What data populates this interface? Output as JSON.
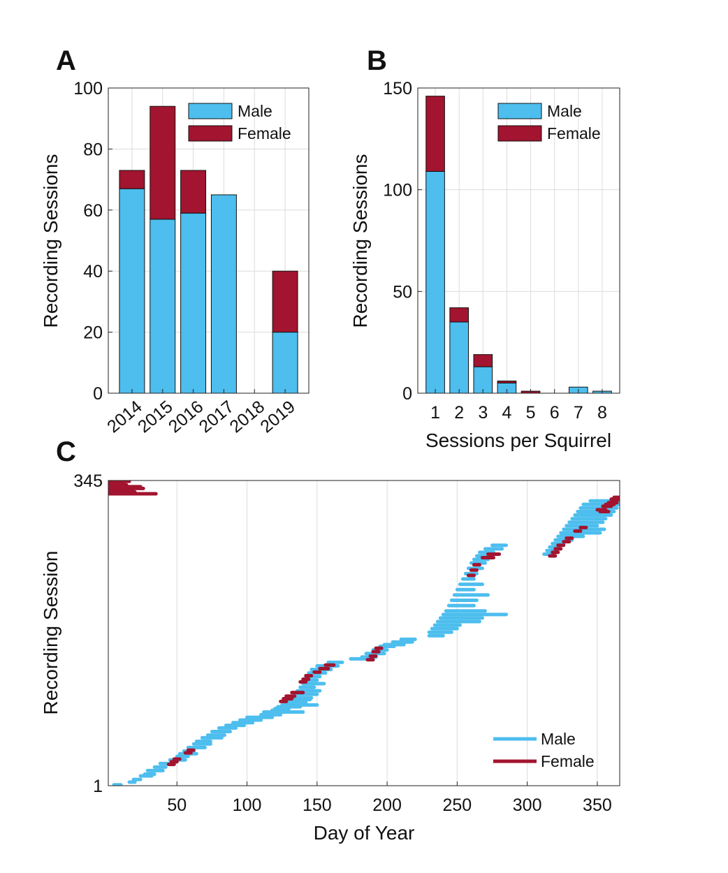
{
  "colors": {
    "male": "#4DBEEE",
    "female": "#A2142F",
    "grid": "#dcdcdc",
    "axis": "#222222"
  },
  "chart_data": [
    {
      "panel": "A",
      "type": "bar",
      "stacked": true,
      "categories": [
        "2014",
        "2015",
        "2016",
        "2017",
        "2018",
        "2019"
      ],
      "series": [
        {
          "name": "Male",
          "values": [
            67,
            57,
            59,
            65,
            0,
            20
          ]
        },
        {
          "name": "Female",
          "values": [
            6,
            37,
            14,
            0,
            0,
            20
          ]
        }
      ],
      "ylabel": "Recording Sessions",
      "xlabel": "",
      "ylim": [
        0,
        100
      ],
      "yticks": [
        "0",
        "20",
        "40",
        "60",
        "80",
        "100"
      ],
      "grid": true,
      "legend": "top-right"
    },
    {
      "panel": "B",
      "type": "bar",
      "stacked": true,
      "categories": [
        "1",
        "2",
        "3",
        "4",
        "5",
        "6",
        "7",
        "8"
      ],
      "series": [
        {
          "name": "Male",
          "values": [
            109,
            35,
            13,
            5,
            0,
            0,
            3,
            1
          ]
        },
        {
          "name": "Female",
          "values": [
            37,
            7,
            6,
            1,
            1,
            0,
            0,
            0
          ]
        }
      ],
      "ylabel": "Recording Sessions",
      "xlabel": "Sessions per Squirrel",
      "ylim": [
        0,
        150
      ],
      "yticks": [
        "0",
        "50",
        "100",
        "150"
      ],
      "grid": true,
      "legend": "top-right"
    },
    {
      "panel": "C",
      "type": "line",
      "description_of_marks": "one horizontal segment per recording session spanning start day to end day of year",
      "xlabel": "Day of Year",
      "ylabel": "Recording Session",
      "xlim": [
        1,
        366
      ],
      "ylim": [
        1,
        345
      ],
      "xticks": [
        "50",
        "100",
        "150",
        "200",
        "250",
        "300",
        "350"
      ],
      "yticks": [
        "1",
        "345"
      ],
      "grid": "x",
      "legend": "bottom-right",
      "series": [
        {
          "name": "Male",
          "segments": [
            [
              5,
              10,
              2
            ],
            [
              16,
              20,
              5
            ],
            [
              19,
              24,
              8
            ],
            [
              24,
              32,
              12
            ],
            [
              27,
              34,
              14
            ],
            [
              29,
              40,
              18
            ],
            [
              34,
              42,
              22
            ],
            [
              38,
              46,
              26
            ],
            [
              45,
              56,
              30
            ],
            [
              50,
              58,
              34
            ],
            [
              52,
              64,
              37
            ],
            [
              55,
              62,
              40
            ],
            [
              58,
              70,
              44
            ],
            [
              62,
              74,
              48
            ],
            [
              64,
              74,
              51
            ],
            [
              68,
              82,
              55
            ],
            [
              72,
              84,
              58
            ],
            [
              75,
              88,
              62
            ],
            [
              80,
              92,
              66
            ],
            [
              85,
              98,
              69
            ],
            [
              90,
              104,
              72
            ],
            [
              95,
              110,
              75
            ],
            [
              100,
              118,
              78
            ],
            [
              110,
              124,
              81
            ],
            [
              112,
              140,
              84
            ],
            [
              118,
              128,
              86
            ],
            [
              120,
              130,
              88
            ],
            [
              122,
              138,
              90
            ],
            [
              125,
              150,
              92
            ],
            [
              128,
              142,
              95
            ],
            [
              130,
              145,
              98
            ],
            [
              132,
              146,
              100
            ],
            [
              135,
              150,
              104
            ],
            [
              136,
              152,
              108
            ],
            [
              138,
              148,
              112
            ],
            [
              140,
              155,
              116
            ],
            [
              141,
              150,
              120
            ],
            [
              142,
              152,
              124
            ],
            [
              144,
              156,
              128
            ],
            [
              146,
              160,
              132
            ],
            [
              150,
              165,
              136
            ],
            [
              158,
              168,
              140
            ],
            [
              174,
              188,
              144
            ],
            [
              182,
              192,
              146
            ],
            [
              185,
              198,
              150
            ],
            [
              190,
              200,
              154
            ],
            [
              195,
              205,
              158
            ],
            [
              198,
              212,
              160
            ],
            [
              204,
              218,
              163
            ],
            [
              210,
              220,
              166
            ],
            [
              230,
              240,
              170
            ],
            [
              230,
              246,
              174
            ],
            [
              232,
              250,
              178
            ],
            [
              234,
              252,
              182
            ],
            [
              236,
              266,
              186
            ],
            [
              238,
              268,
              190
            ],
            [
              240,
              285,
              194
            ],
            [
              242,
              270,
              198
            ],
            [
              244,
              262,
              204
            ],
            [
              246,
              264,
              210
            ],
            [
              248,
              272,
              216
            ],
            [
              250,
              262,
              222
            ],
            [
              252,
              268,
              228
            ],
            [
              254,
              262,
              234
            ],
            [
              256,
              264,
              240
            ],
            [
              258,
              268,
              246
            ],
            [
              260,
              270,
              252
            ],
            [
              262,
              272,
              256
            ],
            [
              264,
              274,
              260
            ],
            [
              266,
              276,
              264
            ],
            [
              270,
              282,
              268
            ],
            [
              275,
              285,
              272
            ],
            [
              312,
              318,
              262
            ],
            [
              314,
              320,
              266
            ],
            [
              316,
              322,
              270
            ],
            [
              318,
              326,
              274
            ],
            [
              320,
              332,
              278
            ],
            [
              322,
              340,
              282
            ],
            [
              324,
              352,
              286
            ],
            [
              326,
              355,
              290
            ],
            [
              328,
              350,
              294
            ],
            [
              330,
              354,
              298
            ],
            [
              332,
              356,
              302
            ],
            [
              334,
              360,
              306
            ],
            [
              336,
              362,
              310
            ],
            [
              338,
              364,
              314
            ],
            [
              340,
              366,
              318
            ],
            [
              345,
              366,
              322
            ]
          ]
        },
        {
          "name": "Female",
          "segments": [
            [
              1,
              35,
              330
            ],
            [
              1,
              20,
              332
            ],
            [
              1,
              18,
              334
            ],
            [
              1,
              26,
              336
            ],
            [
              3,
              24,
              338
            ],
            [
              1,
              14,
              340
            ],
            [
              2,
              12,
              342
            ],
            [
              1,
              16,
              344
            ],
            [
              44,
              48,
              25
            ],
            [
              46,
              50,
              28
            ],
            [
              48,
              52,
              31
            ],
            [
              56,
              60,
              38
            ],
            [
              58,
              62,
              41
            ],
            [
              124,
              128,
              96
            ],
            [
              126,
              132,
              99
            ],
            [
              128,
              134,
              102
            ],
            [
              132,
              140,
              106
            ],
            [
              138,
              142,
              118
            ],
            [
              140,
              144,
              121
            ],
            [
              142,
              146,
              125
            ],
            [
              148,
              152,
              129
            ],
            [
              152,
              158,
              133
            ],
            [
              156,
              162,
              137
            ],
            [
              186,
              190,
              143
            ],
            [
              188,
              192,
              147
            ],
            [
              190,
              194,
              152
            ],
            [
              192,
              196,
              156
            ],
            [
              258,
              262,
              238
            ],
            [
              260,
              264,
              244
            ],
            [
              262,
              266,
              250
            ],
            [
              268,
              276,
              258
            ],
            [
              272,
              280,
              262
            ],
            [
              316,
              320,
              260
            ],
            [
              318,
              322,
              264
            ],
            [
              320,
              324,
              268
            ],
            [
              322,
              326,
              272
            ],
            [
              326,
              330,
              276
            ],
            [
              328,
              332,
              280
            ],
            [
              334,
              338,
              288
            ],
            [
              338,
              342,
              292
            ],
            [
              350,
              356,
              312
            ],
            [
              354,
              360,
              316
            ],
            [
              356,
              362,
              318
            ],
            [
              358,
              364,
              320
            ],
            [
              360,
              366,
              324
            ],
            [
              362,
              366,
              326
            ],
            [
              360,
              364,
              322
            ],
            [
              352,
              358,
              310
            ]
          ]
        }
      ]
    }
  ]
}
